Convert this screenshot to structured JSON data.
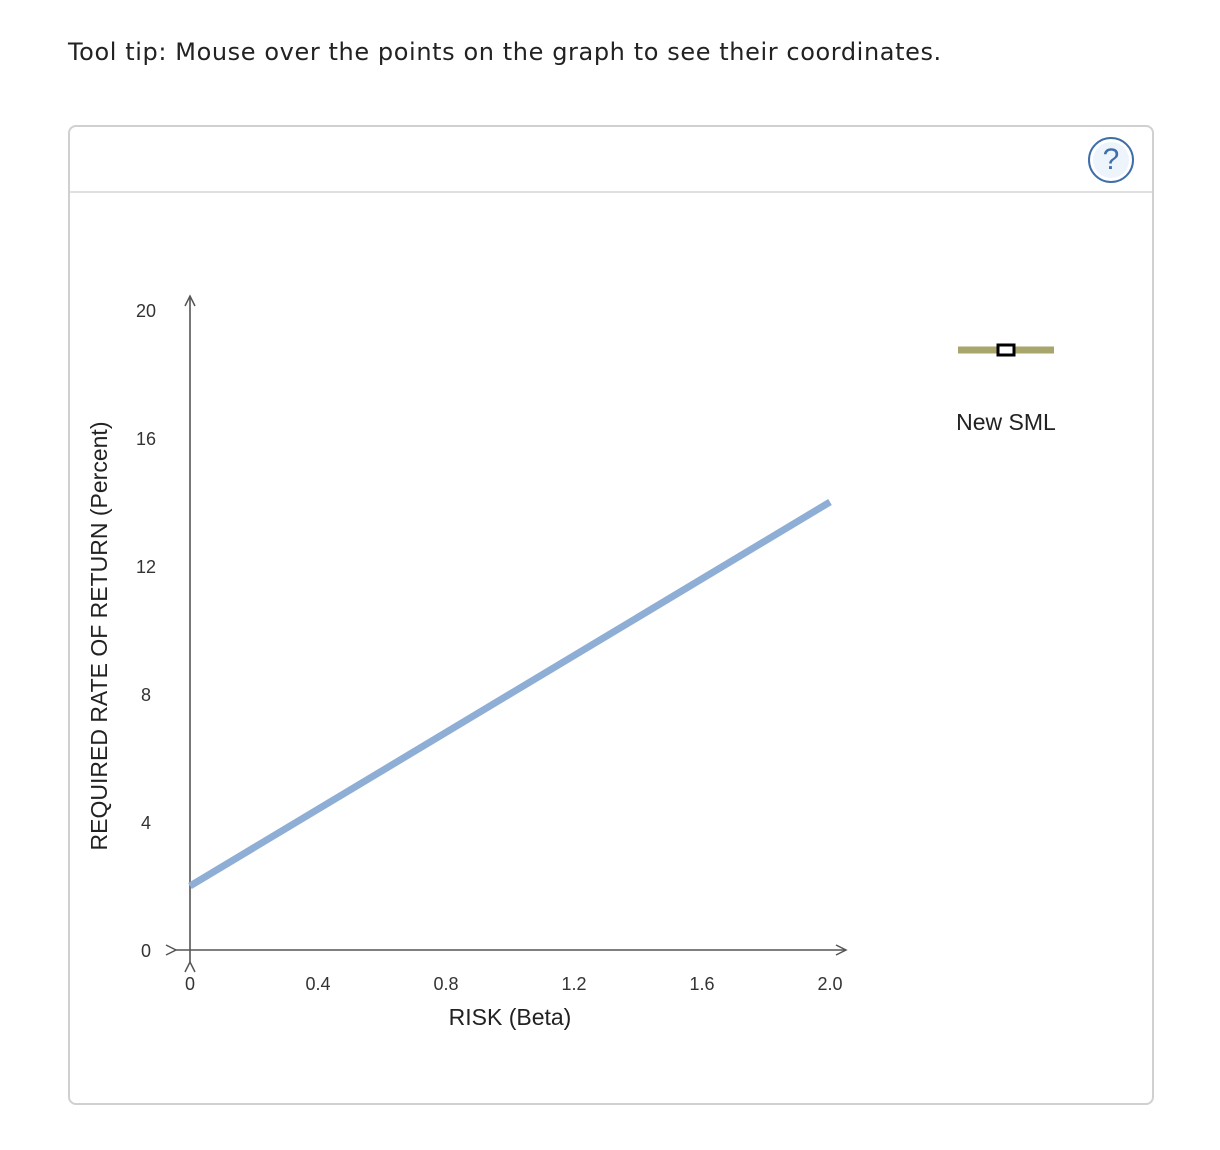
{
  "tooltip": "Tool tip: Mouse over the points on the graph to see their coordinates.",
  "help_label": "?",
  "help_icon": "question-mark-icon",
  "colors": {
    "sml_line": "#8eaed6",
    "legend_line": "#a8a66a",
    "axis": "#555555"
  },
  "chart_data": {
    "type": "line",
    "xlabel": "RISK (Beta)",
    "ylabel": "REQUIRED RATE OF RETURN (Percent)",
    "xlim": [
      0,
      2.0
    ],
    "ylim": [
      0,
      20
    ],
    "x_ticks": [
      "0",
      "0.4",
      "0.8",
      "1.2",
      "1.6",
      "2.0"
    ],
    "y_ticks": [
      "0",
      "4",
      "8",
      "12",
      "16",
      "20"
    ],
    "grid": false,
    "series": [
      {
        "name": "",
        "x": [
          0,
          2.0
        ],
        "y": [
          2,
          14
        ]
      }
    ],
    "legend": {
      "position": "right",
      "entries": [
        {
          "label": "New SML"
        }
      ]
    }
  }
}
